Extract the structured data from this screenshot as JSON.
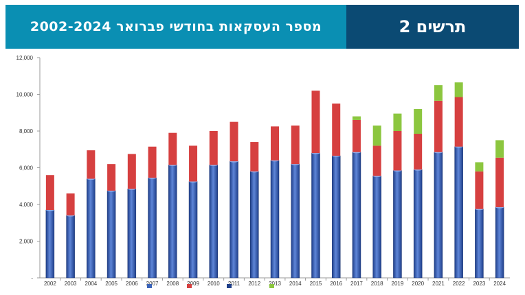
{
  "banner": {
    "title": "מספר העסקאות בחודשי פברואר 2002-2024",
    "label": "תרשים 2"
  },
  "chart_data": {
    "type": "bar",
    "stacked": true,
    "categories": [
      "2002",
      "2003",
      "2004",
      "2005",
      "2006",
      "2007",
      "2008",
      "2009",
      "2010",
      "2011",
      "2012",
      "2013",
      "2014",
      "2015",
      "2016",
      "2017",
      "2018",
      "2019",
      "2020",
      "2021",
      "2022",
      "2023",
      "2024"
    ],
    "series": [
      {
        "values": [
          3700,
          3400,
          5400,
          4750,
          4850,
          5450,
          6150,
          5250,
          6150,
          6350,
          5800,
          6400,
          6200,
          6800,
          6650,
          6850,
          5550,
          5850,
          5900,
          6850,
          7150,
          3750,
          3850
        ],
        "color": "#3a63b8"
      },
      {
        "values": [
          1900,
          1200,
          1550,
          1450,
          1900,
          1700,
          1750,
          1950,
          1850,
          2150,
          1600,
          1850,
          2100,
          3400,
          2850,
          1750,
          1650,
          2150,
          1950,
          2800,
          2700,
          2050,
          2700
        ],
        "color": "#d64040"
      },
      {
        "values": [
          0,
          0,
          0,
          0,
          0,
          0,
          0,
          0,
          0,
          0,
          0,
          0,
          0,
          0,
          0,
          200,
          1100,
          950,
          1350,
          850,
          800,
          500,
          950
        ],
        "color": "#8cc63f"
      }
    ],
    "y_ticks": [
      "12,000",
      "10,000",
      "8,000",
      "6,000",
      "4,000",
      "2,000",
      "-"
    ],
    "ylim": [
      0,
      12000
    ],
    "grid": false,
    "legend_position": "bottom"
  }
}
